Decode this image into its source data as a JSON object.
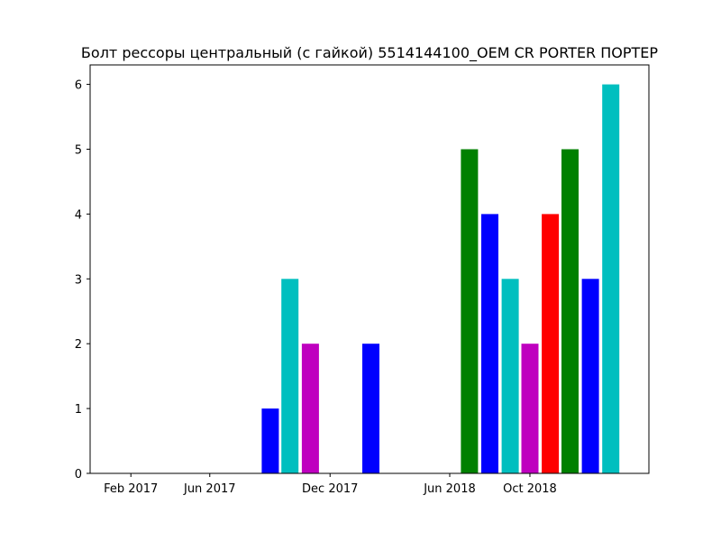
{
  "chart_data": {
    "type": "bar",
    "title": "Болт рессоры центральный (с гайкой) 5514144100_OEM CR PORTER ПОРТЕР",
    "xlabel": "",
    "ylabel": "",
    "x_axis": {
      "type": "date",
      "range": [
        "2016-12-01",
        "2019-03-31"
      ],
      "ticks": [
        {
          "date": "2017-02-01",
          "label": "Feb 2017"
        },
        {
          "date": "2017-06-01",
          "label": "Jun 2017"
        },
        {
          "date": "2017-12-01",
          "label": "Dec 2017"
        },
        {
          "date": "2018-06-01",
          "label": "Jun 2018"
        },
        {
          "date": "2018-10-01",
          "label": "Oct 2018"
        }
      ]
    },
    "ylim": [
      0,
      6.3
    ],
    "y_ticks": [
      0,
      1,
      2,
      3,
      4,
      5,
      6
    ],
    "grid": false,
    "legend": "none",
    "bars": [
      {
        "date": "2017-09-01",
        "value": 1,
        "color": "#0000ff"
      },
      {
        "date": "2017-10-01",
        "value": 3,
        "color": "#00bfbf"
      },
      {
        "date": "2017-11-01",
        "value": 2,
        "color": "#bf00bf"
      },
      {
        "date": "2018-02-01",
        "value": 2,
        "color": "#0000ff"
      },
      {
        "date": "2018-07-01",
        "value": 5,
        "color": "#008000"
      },
      {
        "date": "2018-08-01",
        "value": 4,
        "color": "#0000ff"
      },
      {
        "date": "2018-09-01",
        "value": 3,
        "color": "#00bfbf"
      },
      {
        "date": "2018-10-01",
        "value": 2,
        "color": "#bf00bf"
      },
      {
        "date": "2018-11-01",
        "value": 4,
        "color": "#ff0000"
      },
      {
        "date": "2018-12-01",
        "value": 5,
        "color": "#008000"
      },
      {
        "date": "2019-01-01",
        "value": 3,
        "color": "#0000ff"
      },
      {
        "date": "2019-02-01",
        "value": 6,
        "color": "#00bfbf"
      }
    ]
  }
}
